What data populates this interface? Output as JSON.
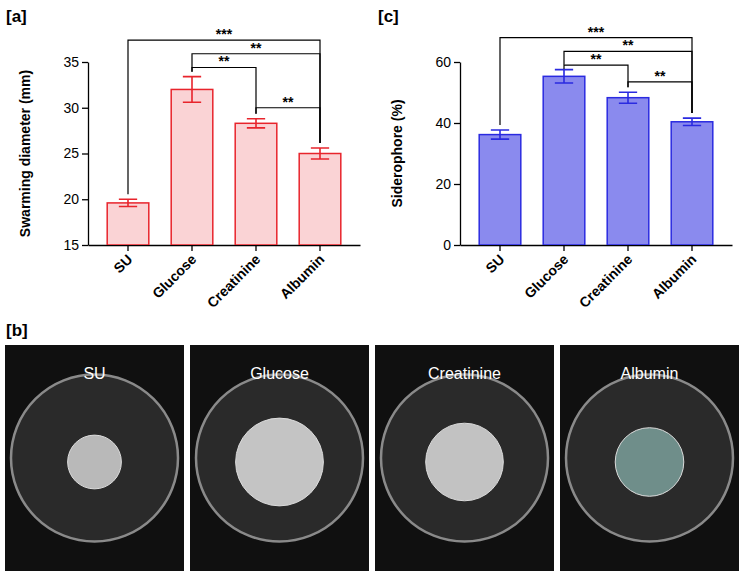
{
  "chart_data": [
    {
      "type": "bar",
      "panel_label": "[a]",
      "y_label": "Swarming diameter (mm)",
      "categories": [
        "SU",
        "Glucose",
        "Creatinine",
        "Albumin"
      ],
      "values": [
        19.6,
        32.0,
        28.3,
        25.0
      ],
      "errors": [
        0.4,
        1.4,
        0.5,
        0.6
      ],
      "color": "#e8242c",
      "ylim": [
        15,
        35
      ],
      "yticks": [
        15,
        20,
        25,
        30,
        35
      ],
      "grid": false,
      "significance": [
        {
          "label": "***",
          "from": 0,
          "to": 3,
          "y": 37.4
        },
        {
          "label": "**",
          "from": 1,
          "to": 3,
          "y": 35.9
        },
        {
          "label": "**",
          "from": 1,
          "to": 2,
          "y": 34.4
        },
        {
          "label": "**",
          "from": 2,
          "to": 3,
          "y": 30.0
        }
      ]
    },
    {
      "type": "bar",
      "panel_label": "[c]",
      "y_label": "Siderophore (%)",
      "categories": [
        "SU",
        "Glucose",
        "Creatinine",
        "Albumin"
      ],
      "values": [
        36.2,
        55.3,
        48.3,
        40.4
      ],
      "errors": [
        1.5,
        2.2,
        1.8,
        1.2
      ],
      "color": "#2a2ae0",
      "ylim": [
        0,
        60
      ],
      "yticks": [
        0,
        20,
        40,
        60
      ],
      "grid": false,
      "significance": [
        {
          "label": "***",
          "from": 0,
          "to": 3,
          "y": 68.0
        },
        {
          "label": "**",
          "from": 1,
          "to": 3,
          "y": 63.5
        },
        {
          "label": "**",
          "from": 1,
          "to": 2,
          "y": 59.0
        },
        {
          "label": "**",
          "from": 2,
          "to": 3,
          "y": 53.5
        }
      ]
    }
  ],
  "photo_panel": {
    "panel_label": "[b]",
    "labels": [
      "SU",
      "Glucose",
      "Creatinine",
      "Albumin"
    ]
  }
}
